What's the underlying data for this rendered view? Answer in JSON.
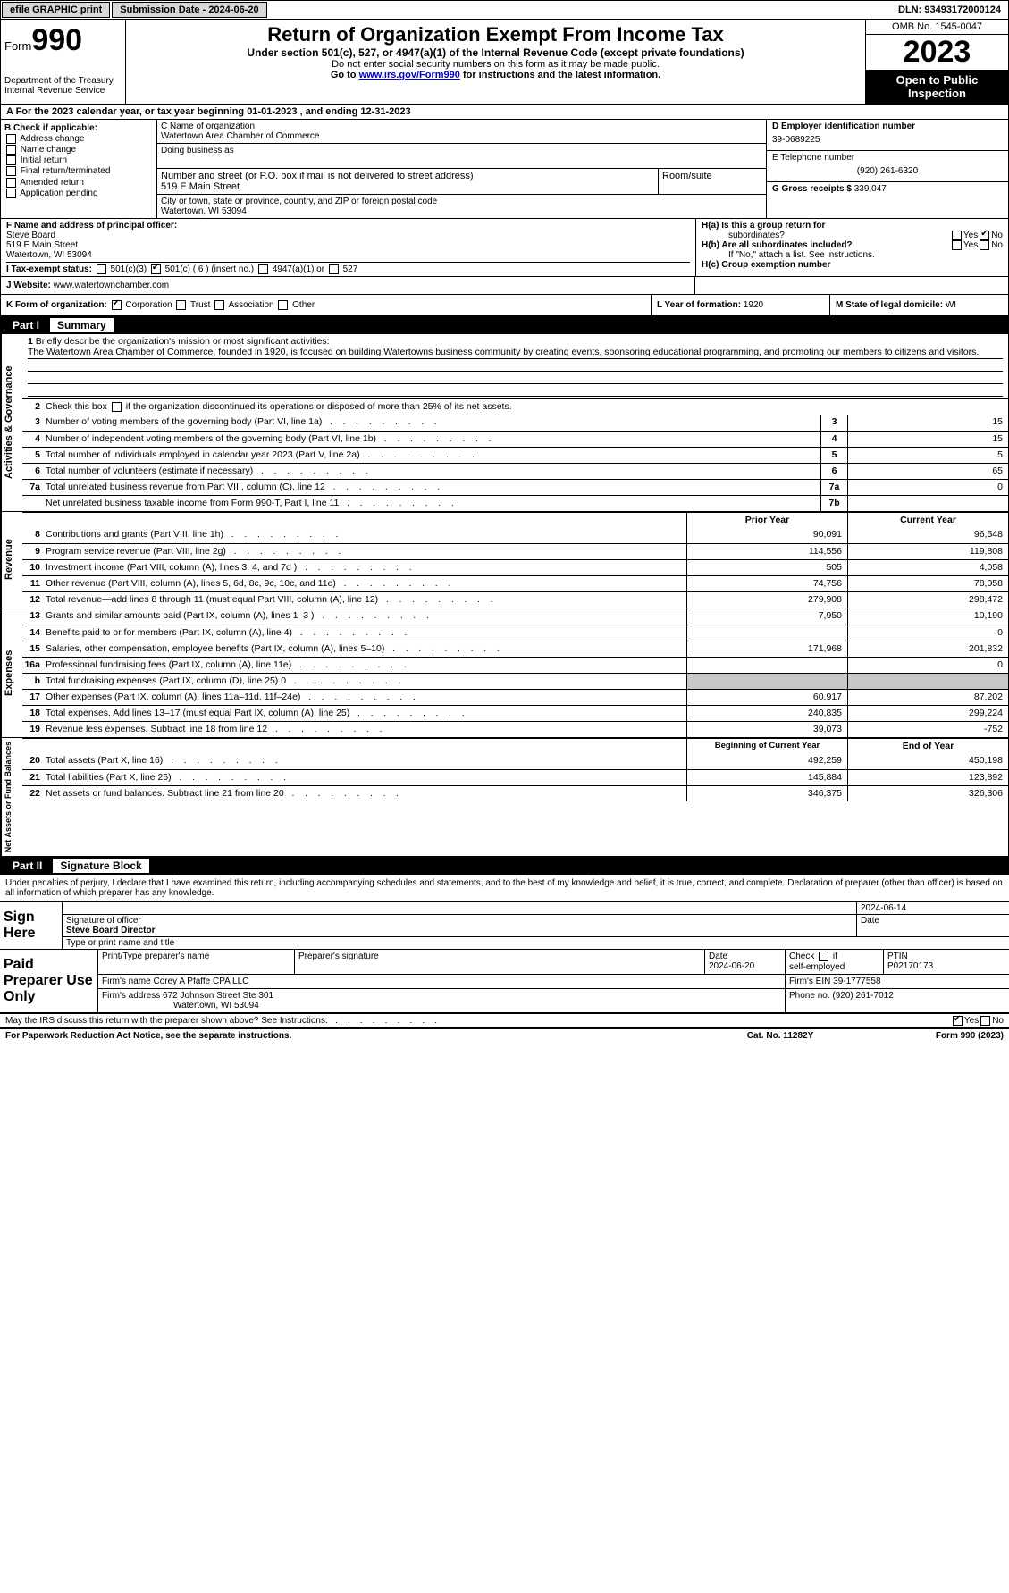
{
  "topbar": {
    "efile": "efile GRAPHIC print",
    "submission_label": "Submission Date - 2024-06-20",
    "dln": "DLN: 93493172000124"
  },
  "header": {
    "form_prefix": "Form",
    "form_num": "990",
    "dept": "Department of the Treasury\nInternal Revenue Service",
    "title": "Return of Organization Exempt From Income Tax",
    "sub": "Under section 501(c), 527, or 4947(a)(1) of the Internal Revenue Code (except private foundations)",
    "note1": "Do not enter social security numbers on this form as it may be made public.",
    "note2_prefix": "Go to ",
    "note2_link": "www.irs.gov/Form990",
    "note2_suffix": " for instructions and the latest information.",
    "omb": "OMB No. 1545-0047",
    "year": "2023",
    "open": "Open to Public Inspection"
  },
  "rowA": "A   For the 2023 calendar year, or tax year beginning 01-01-2023    , and ending 12-31-2023",
  "boxB": {
    "hdr": "B Check if applicable:",
    "opts": [
      "Address change",
      "Name change",
      "Initial return",
      "Final return/terminated",
      "Amended return",
      "Application pending"
    ]
  },
  "boxC": {
    "name_label": "C Name of organization",
    "name": "Watertown Area Chamber of Commerce",
    "dba_label": "Doing business as",
    "addr_label": "Number and street (or P.O. box if mail is not delivered to street address)",
    "room_label": "Room/suite",
    "addr": "519 E Main Street",
    "city_label": "City or town, state or province, country, and ZIP or foreign postal code",
    "city": "Watertown, WI  53094"
  },
  "boxD": {
    "ein_label": "D Employer identification number",
    "ein": "39-0689225",
    "tel_label": "E Telephone number",
    "tel": "(920) 261-6320",
    "gross_label": "G Gross receipts $ ",
    "gross": "339,047"
  },
  "boxF": {
    "label": "F  Name and address of principal officer:",
    "name": "Steve Board",
    "addr1": "519 E Main Street",
    "addr2": "Watertown, WI  53094"
  },
  "taxrow": {
    "label": "I    Tax-exempt status:",
    "c3": "501(c)(3)",
    "c": "501(c) ( 6 ) (insert no.)",
    "a1": "4947(a)(1) or",
    "s527": "527"
  },
  "boxH": {
    "a_label": "H(a)  Is this a group return for",
    "a_sub": "subordinates?",
    "b_label": "H(b)  Are all subordinates included?",
    "b_note": "If \"No,\" attach a list. See instructions.",
    "c_label": "H(c)  Group exemption number ",
    "yes": "Yes",
    "no": "No"
  },
  "website": {
    "label": "J    Website: ",
    "value": "www.watertownchamber.com"
  },
  "orgform": {
    "k": "K Form of organization:",
    "corp": "Corporation",
    "trust": "Trust",
    "assoc": "Association",
    "other": "Other",
    "l_label": "L Year of formation: ",
    "l_val": "1920",
    "m_label": "M State of legal domicile: ",
    "m_val": "WI"
  },
  "part1": {
    "label": "Part I",
    "title": "Summary"
  },
  "summary": {
    "sections": {
      "ag": "Activities & Governance",
      "rev": "Revenue",
      "exp": "Expenses",
      "net": "Net Assets or Fund Balances"
    },
    "l1_label": "Briefly describe the organization's mission or most significant activities:",
    "l1_text": "The Watertown Area Chamber of Commerce, founded in 1920, is focused on building Watertowns business community by creating events, sponsoring educational programming, and promoting our members to citizens and visitors.",
    "l2": "Check this box           if the organization discontinued its operations or disposed of more than 25% of its net assets.",
    "lines_single": [
      {
        "n": "3",
        "d": "Number of voting members of the governing body (Part VI, line 1a)",
        "box": "3",
        "v": "15"
      },
      {
        "n": "4",
        "d": "Number of independent voting members of the governing body (Part VI, line 1b)",
        "box": "4",
        "v": "15"
      },
      {
        "n": "5",
        "d": "Total number of individuals employed in calendar year 2023 (Part V, line 2a)",
        "box": "5",
        "v": "5"
      },
      {
        "n": "6",
        "d": "Total number of volunteers (estimate if necessary)",
        "box": "6",
        "v": "65"
      },
      {
        "n": "7a",
        "d": "Total unrelated business revenue from Part VIII, column (C), line 12",
        "box": "7a",
        "v": "0"
      },
      {
        "n": "",
        "d": "Net unrelated business taxable income from Form 990-T, Part I, line 11",
        "box": "7b",
        "v": ""
      }
    ],
    "col_hdr_prior": "Prior Year",
    "col_hdr_current": "Current Year",
    "rev_lines": [
      {
        "n": "8",
        "d": "Contributions and grants (Part VIII, line 1h)",
        "p": "90,091",
        "c": "96,548"
      },
      {
        "n": "9",
        "d": "Program service revenue (Part VIII, line 2g)",
        "p": "114,556",
        "c": "119,808"
      },
      {
        "n": "10",
        "d": "Investment income (Part VIII, column (A), lines 3, 4, and 7d )",
        "p": "505",
        "c": "4,058"
      },
      {
        "n": "11",
        "d": "Other revenue (Part VIII, column (A), lines 5, 6d, 8c, 9c, 10c, and 11e)",
        "p": "74,756",
        "c": "78,058"
      },
      {
        "n": "12",
        "d": "Total revenue—add lines 8 through 11 (must equal Part VIII, column (A), line 12)",
        "p": "279,908",
        "c": "298,472"
      }
    ],
    "exp_lines": [
      {
        "n": "13",
        "d": "Grants and similar amounts paid (Part IX, column (A), lines 1–3 )",
        "p": "7,950",
        "c": "10,190"
      },
      {
        "n": "14",
        "d": "Benefits paid to or for members (Part IX, column (A), line 4)",
        "p": "",
        "c": "0"
      },
      {
        "n": "15",
        "d": "Salaries, other compensation, employee benefits (Part IX, column (A), lines 5–10)",
        "p": "171,968",
        "c": "201,832"
      },
      {
        "n": "16a",
        "d": "Professional fundraising fees (Part IX, column (A), line 11e)",
        "p": "",
        "c": "0"
      },
      {
        "n": "b",
        "d": "Total fundraising expenses (Part IX, column (D), line 25) 0",
        "p": "GREY",
        "c": "GREY"
      },
      {
        "n": "17",
        "d": "Other expenses (Part IX, column (A), lines 11a–11d, 11f–24e)",
        "p": "60,917",
        "c": "87,202"
      },
      {
        "n": "18",
        "d": "Total expenses. Add lines 13–17 (must equal Part IX, column (A), line 25)",
        "p": "240,835",
        "c": "299,224"
      },
      {
        "n": "19",
        "d": "Revenue less expenses. Subtract line 18 from line 12",
        "p": "39,073",
        "c": "-752"
      }
    ],
    "net_hdr_begin": "Beginning of Current Year",
    "net_hdr_end": "End of Year",
    "net_lines": [
      {
        "n": "20",
        "d": "Total assets (Part X, line 16)",
        "p": "492,259",
        "c": "450,198"
      },
      {
        "n": "21",
        "d": "Total liabilities (Part X, line 26)",
        "p": "145,884",
        "c": "123,892"
      },
      {
        "n": "22",
        "d": "Net assets or fund balances. Subtract line 21 from line 20",
        "p": "346,375",
        "c": "326,306"
      }
    ]
  },
  "part2": {
    "label": "Part II",
    "title": "Signature Block"
  },
  "sig": {
    "intro": "Under penalties of perjury, I declare that I have examined this return, including accompanying schedules and statements, and to the best of my knowledge and belief, it is true, correct, and complete. Declaration of preparer (other than officer) is based on all information of which preparer has any knowledge.",
    "sign_here": "Sign Here",
    "date": "2024-06-14",
    "sig_officer_label": "Signature of officer",
    "officer_name": "Steve Board  Director",
    "type_label": "Type or print name and title",
    "date_label": "Date"
  },
  "paid": {
    "label": "Paid Preparer Use Only",
    "print_label": "Print/Type preparer's name",
    "sig_label": "Preparer's signature",
    "date_label": "Date",
    "date": "2024-06-20",
    "check_label": "Check         if self-employed",
    "ptin_label": "PTIN",
    "ptin": "P02170173",
    "firm_name_label": "Firm's name    ",
    "firm_name": "Corey A Pfaffe CPA LLC",
    "firm_ein_label": "Firm's EIN  ",
    "firm_ein": "39-1777558",
    "firm_addr_label": "Firm's address ",
    "firm_addr": "672 Johnson Street Ste 301",
    "firm_city": "Watertown, WI  53094",
    "phone_label": "Phone no. ",
    "phone": "(920) 261-7012"
  },
  "footer": {
    "discuss": "May the IRS discuss this return with the preparer shown above? See Instructions.",
    "yes": "Yes",
    "no": "No",
    "paperwork": "For Paperwork Reduction Act Notice, see the separate instructions.",
    "cat": "Cat. No. 11282Y",
    "formref": "Form 990 (2023)"
  },
  "colors": {
    "black": "#000000",
    "white": "#ffffff",
    "grey_btn": "#d8d8d8",
    "grey_cell": "#c8c8c8",
    "link": "#0000cc"
  }
}
